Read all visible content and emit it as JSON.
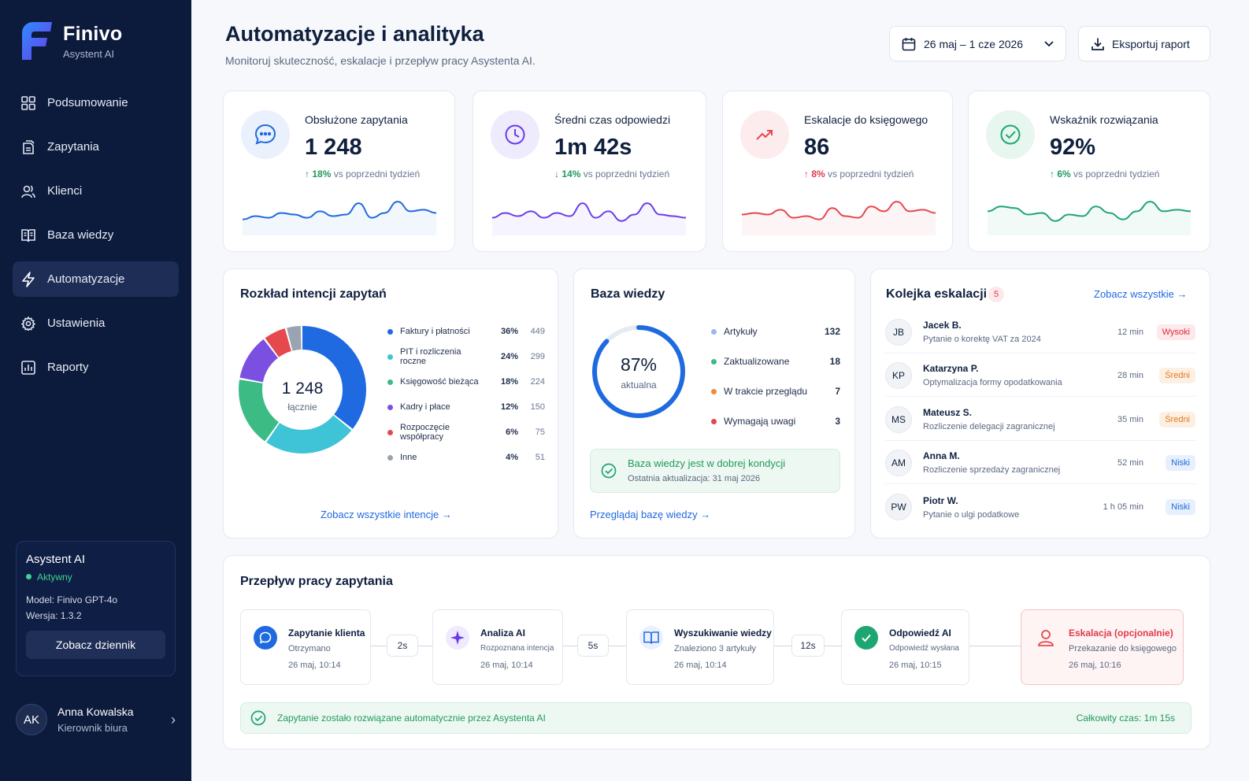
{
  "app": {
    "brand": "Finivo",
    "brand_sub": "Asystent AI"
  },
  "nav": [
    {
      "label": "Podsumowanie",
      "icon": "grid-icon"
    },
    {
      "label": "Zapytania",
      "icon": "documents-icon"
    },
    {
      "label": "Klienci",
      "icon": "users-icon"
    },
    {
      "label": "Baza wiedzy",
      "icon": "book-icon"
    },
    {
      "label": "Automatyzacje",
      "icon": "bolt-icon",
      "active": true
    },
    {
      "label": "Ustawienia",
      "icon": "gear-icon"
    },
    {
      "label": "Raporty",
      "icon": "chart-icon"
    }
  ],
  "assistant": {
    "title": "Asystent AI",
    "status": "Aktywny",
    "model_label": "Model:",
    "model": "Finivo GPT-4o",
    "version_label": "Wersja:",
    "version": "1.3.2",
    "button": "Zobacz dziennik"
  },
  "user": {
    "initials": "AK",
    "name": "Anna Kowalska",
    "role": "Kierownik biura"
  },
  "header": {
    "title": "Automatyzacje i analityka",
    "subtitle": "Monitoruj skuteczność, eskalacje i przepływ pracy Asystenta AI.",
    "date_range": "26 maj – 1 cze 2026",
    "export": "Eksportuj raport"
  },
  "kpis": [
    {
      "label": "Obsłużone zapytania",
      "value": "1 248",
      "delta": "18%",
      "delta_text": "vs poprzedni tydzień",
      "direction": "up",
      "delta_color": "#1f9a5c",
      "color": "#1f6ae0",
      "icon": "chat-icon",
      "spark": [
        0.35,
        0.45,
        0.4,
        0.55,
        0.5,
        0.4,
        0.6,
        0.45,
        0.5,
        0.85,
        0.4,
        0.55,
        0.9,
        0.6,
        0.65,
        0.55
      ]
    },
    {
      "label": "Średni czas odpowiedzi",
      "value": "1m 42s",
      "delta": "14%",
      "delta_text": "vs poprzedni tydzień",
      "direction": "down",
      "delta_color": "#1f9a5c",
      "color": "#6a3de8",
      "icon": "clock-icon",
      "spark": [
        0.4,
        0.55,
        0.45,
        0.6,
        0.4,
        0.55,
        0.45,
        0.85,
        0.4,
        0.6,
        0.3,
        0.5,
        0.85,
        0.5,
        0.45,
        0.4
      ]
    },
    {
      "label": "Eskalacje do księgowego",
      "value": "86",
      "delta": "8%",
      "delta_text": "vs poprzedni tydzień",
      "direction": "up",
      "delta_color": "#e03b4a",
      "color": "#e5484d",
      "icon": "trend-up-icon",
      "spark": [
        0.5,
        0.55,
        0.5,
        0.65,
        0.4,
        0.45,
        0.35,
        0.7,
        0.45,
        0.4,
        0.75,
        0.6,
        0.9,
        0.6,
        0.65,
        0.55
      ]
    },
    {
      "label": "Wskaźnik rozwiązania",
      "value": "92%",
      "delta": "6%",
      "delta_text": "vs poprzedni tydzień",
      "direction": "up",
      "delta_color": "#1f9a5c",
      "color": "#1ea672",
      "icon": "check-circle-icon",
      "spark": [
        0.6,
        0.75,
        0.7,
        0.5,
        0.55,
        0.3,
        0.5,
        0.45,
        0.75,
        0.55,
        0.35,
        0.6,
        0.9,
        0.6,
        0.65,
        0.6
      ]
    }
  ],
  "intents": {
    "title": "Rozkład intencji zapytań",
    "total": "1 248",
    "total_label": "łącznie",
    "items": [
      {
        "label": "Faktury i płatności",
        "pct": "36%",
        "count": "449",
        "value": 36,
        "color": "#1f6ae0"
      },
      {
        "label": "PIT i rozliczenia roczne",
        "pct": "24%",
        "count": "299",
        "value": 24,
        "color": "#3ec4d6"
      },
      {
        "label": "Księgowość bieżąca",
        "pct": "18%",
        "count": "224",
        "value": 18,
        "color": "#3dbb85"
      },
      {
        "label": "Kadry i płace",
        "pct": "12%",
        "count": "150",
        "value": 12,
        "color": "#7b4fe0"
      },
      {
        "label": "Rozpoczęcie współpracy",
        "pct": "6%",
        "count": "75",
        "value": 6,
        "color": "#e5484d"
      },
      {
        "label": "Inne",
        "pct": "4%",
        "count": "51",
        "value": 4,
        "color": "#9aa3b2"
      }
    ],
    "link": "Zobacz wszystkie intencje"
  },
  "knowledge": {
    "title": "Baza wiedzy",
    "pct": "87%",
    "pct_value": 87,
    "pct_label": "aktualna",
    "items": [
      {
        "label": "Artykuły",
        "count": "132",
        "color": "#9db6f0"
      },
      {
        "label": "Zaktualizowane",
        "count": "18",
        "color": "#3dbb85"
      },
      {
        "label": "W trakcie przeglądu",
        "count": "7",
        "color": "#f08a3c"
      },
      {
        "label": "Wymagają uwagi",
        "count": "3",
        "color": "#e5484d"
      }
    ],
    "ok_title": "Baza wiedzy jest w dobrej kondycji",
    "ok_sub": "Ostatnia aktualizacja: 31 maj 2026",
    "link": "Przeglądaj bazę wiedzy"
  },
  "escalations": {
    "title": "Kolejka eskalacji",
    "count": "5",
    "link": "Zobacz wszystkie",
    "items": [
      {
        "initials": "JB",
        "name": "Jacek B.",
        "desc": "Pytanie o korektę VAT za 2024",
        "time": "12 min",
        "priority": "Wysoki",
        "bg": "#fde8ea",
        "fg": "#d92d3a"
      },
      {
        "initials": "KP",
        "name": "Katarzyna P.",
        "desc": "Optymalizacja formy opodatkowania",
        "time": "28 min",
        "priority": "Średni",
        "bg": "#fdf0e2",
        "fg": "#e07a1f"
      },
      {
        "initials": "MS",
        "name": "Mateusz S.",
        "desc": "Rozliczenie delegacji zagranicznej",
        "time": "35 min",
        "priority": "Średni",
        "bg": "#fdf0e2",
        "fg": "#e07a1f"
      },
      {
        "initials": "AM",
        "name": "Anna M.",
        "desc": "Rozliczenie sprzedaży zagranicznej",
        "time": "52 min",
        "priority": "Niski",
        "bg": "#e7f0fd",
        "fg": "#1f6ae0"
      },
      {
        "initials": "PW",
        "name": "Piotr W.",
        "desc": "Pytanie o ulgi podatkowe",
        "time": "1 h 05 min",
        "priority": "Niski",
        "bg": "#e7f0fd",
        "fg": "#1f6ae0"
      }
    ]
  },
  "workflow": {
    "title": "Przepływ pracy zapytania",
    "steps": [
      {
        "title": "Zapytanie klienta",
        "sub": "Otrzymano",
        "date": "26 maj, 10:14",
        "icon": "chat-icon"
      },
      {
        "title": "Analiza AI",
        "sub": "Rozpoznana intencja",
        "date": "26 maj, 10:14",
        "icon": "sparkle-icon"
      },
      {
        "title": "Wyszukiwanie wiedzy",
        "sub": "Znaleziono 3 artykuły",
        "date": "26 maj, 10:14",
        "icon": "book-icon"
      },
      {
        "title": "Odpowiedź AI",
        "sub": "Odpowiedź wysłana",
        "date": "26 maj, 10:15",
        "icon": "check-circle-icon"
      },
      {
        "title": "Eskalacja (opcjonalnie)",
        "sub": "Przekazanie do księgowego",
        "date": "26 maj, 10:16",
        "icon": "user-icon"
      }
    ],
    "durations": [
      "2s",
      "5s",
      "12s"
    ],
    "ok_text": "Zapytanie zostało rozwiązane automatycznie przez Asystenta AI",
    "total_label": "Całkowity czas:",
    "total": "1m 15s"
  }
}
